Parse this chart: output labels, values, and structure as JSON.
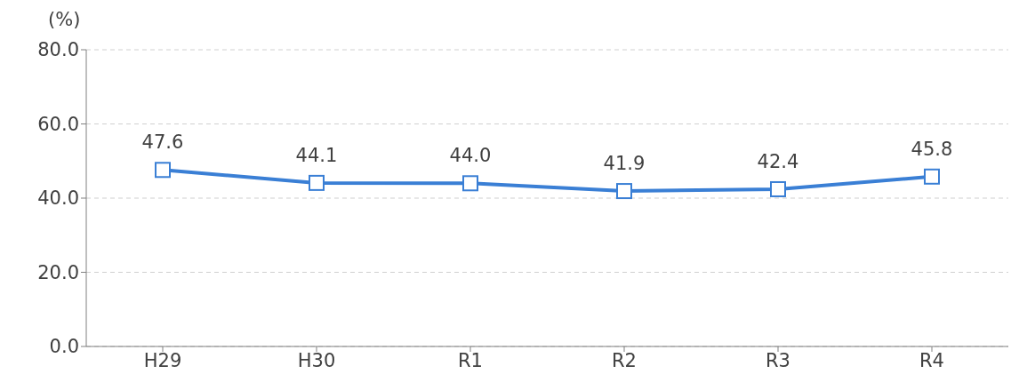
{
  "chart_data": {
    "type": "line",
    "ylabel": "(%)",
    "categories": [
      "H29",
      "H30",
      "R1",
      "R2",
      "R3",
      "R4"
    ],
    "series": [
      {
        "color": "#3a7fd5",
        "values": [
          47.6,
          44.1,
          44.0,
          41.9,
          42.4,
          45.8
        ],
        "value_labels": [
          "47.6",
          "44.1",
          "44.0",
          "41.9",
          "42.4",
          "45.8"
        ]
      }
    ],
    "ylim": [
      0,
      80
    ],
    "yticks": [
      {
        "value": 0,
        "label": "0.0"
      },
      {
        "value": 20,
        "label": "20.0"
      },
      {
        "value": 40,
        "label": "40.0"
      },
      {
        "value": 60,
        "label": "60.0"
      },
      {
        "value": 80,
        "label": "80.0"
      }
    ],
    "grid": "y",
    "marker": "square",
    "line_style": "solid"
  }
}
